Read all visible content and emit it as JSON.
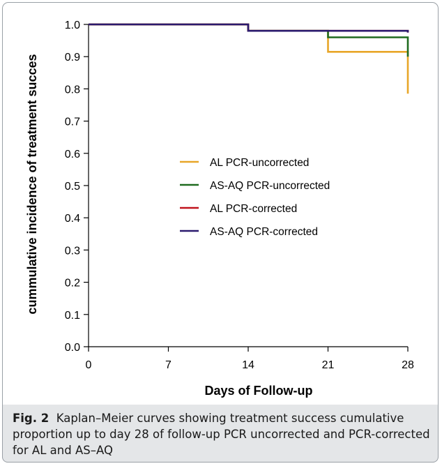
{
  "chart_data": {
    "type": "line",
    "step": true,
    "xlabel": "Days of Follow-up",
    "ylabel": "cummulative incidence of treatment succes",
    "xlim": [
      0,
      28
    ],
    "ylim": [
      0.0,
      1.0
    ],
    "x_ticks": [
      0,
      7,
      14,
      21,
      28
    ],
    "y_ticks": [
      "0.0",
      "0.1",
      "0.2",
      "0.3",
      "0.4",
      "0.5",
      "0.6",
      "0.7",
      "0.8",
      "0.9",
      "1.0"
    ],
    "legend_position": "center",
    "series": [
      {
        "name": "AL PCR-uncorrected",
        "color": "#e8a628",
        "points": [
          [
            0,
            1.0
          ],
          [
            14,
            1.0
          ],
          [
            14,
            0.98
          ],
          [
            21,
            0.98
          ],
          [
            21,
            0.915
          ],
          [
            28,
            0.915
          ],
          [
            28,
            0.785
          ]
        ]
      },
      {
        "name": "AS-AQ PCR-uncorrected",
        "color": "#1f6b1f",
        "points": [
          [
            0,
            1.0
          ],
          [
            14,
            1.0
          ],
          [
            14,
            0.98
          ],
          [
            21,
            0.98
          ],
          [
            21,
            0.96
          ],
          [
            28,
            0.96
          ],
          [
            28,
            0.9
          ]
        ]
      },
      {
        "name": "AL PCR-corrected",
        "color": "#c0121c",
        "points": [
          [
            0,
            1.0
          ],
          [
            14,
            1.0
          ],
          [
            14,
            0.98
          ],
          [
            28,
            0.98
          ],
          [
            28,
            0.975
          ]
        ]
      },
      {
        "name": "AS-AQ PCR-corrected",
        "color": "#2a1a6e",
        "points": [
          [
            0,
            1.0
          ],
          [
            14,
            1.0
          ],
          [
            14,
            0.98
          ],
          [
            28,
            0.98
          ],
          [
            28,
            0.975
          ]
        ]
      }
    ]
  },
  "caption": {
    "label": "Fig. 2",
    "text": "Kaplan–Meier curves showing treatment success cumulative proportion up to day 28 of follow-up PCR uncorrected and PCR-corrected for AL and AS–AQ"
  }
}
